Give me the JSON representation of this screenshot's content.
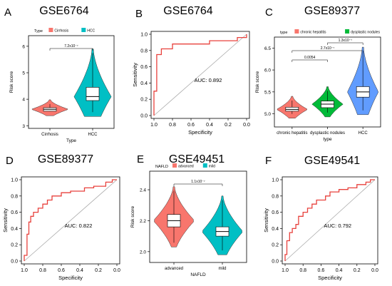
{
  "figure": {
    "panels": [
      {
        "letter": "A",
        "title": "GSE6764"
      },
      {
        "letter": "B",
        "title": "GSE6764"
      },
      {
        "letter": "C",
        "title": "GSE89377"
      },
      {
        "letter": "D",
        "title": "GSE89377"
      },
      {
        "letter": "E",
        "title": "GSE49451"
      },
      {
        "letter": "F",
        "title": "GSE49541"
      }
    ]
  },
  "chart_data": [
    {
      "panel": "A",
      "type": "violin",
      "title": "GSE6764",
      "legend_title": "Type",
      "legend_position": "top",
      "categories": [
        "Cirrhosis",
        "HCC"
      ],
      "colors": [
        "#F8766D",
        "#00BFC4"
      ],
      "xlabel": "Type",
      "ylabel": "Risk score",
      "yticks": [
        3,
        4,
        5,
        6
      ],
      "ylim": [
        2.9,
        6.4
      ],
      "groups": [
        {
          "name": "Cirrhosis",
          "min": 3.38,
          "max": 3.98,
          "q1": 3.55,
          "median": 3.62,
          "q3": 3.68
        },
        {
          "name": "HCC",
          "min": 3.35,
          "max": 5.9,
          "q1": 3.95,
          "median": 4.1,
          "q3": 4.45
        }
      ],
      "annotations": [
        {
          "text": "7.2x10⁻⁷",
          "between": [
            "Cirrhosis",
            "HCC"
          ]
        }
      ]
    },
    {
      "panel": "B",
      "type": "line",
      "title": "GSE6764",
      "xlabel": "Specificity",
      "ylabel": "Sensitivity",
      "xticks": [
        "1.0",
        "0.8",
        "0.6",
        "0.4",
        "0.2",
        "0.0"
      ],
      "yticks": [
        "0.0",
        "0.2",
        "0.4",
        "0.6",
        "0.8",
        "1.0"
      ],
      "xlim": [
        1.0,
        0.0
      ],
      "ylim": [
        0,
        1
      ],
      "auc_label": "AUC: 0.892",
      "roc": [
        [
          1.0,
          0.0
        ],
        [
          1.0,
          0.3
        ],
        [
          0.97,
          0.3
        ],
        [
          0.97,
          0.75
        ],
        [
          0.92,
          0.75
        ],
        [
          0.92,
          0.82
        ],
        [
          0.8,
          0.82
        ],
        [
          0.8,
          0.88
        ],
        [
          0.4,
          0.88
        ],
        [
          0.4,
          0.92
        ],
        [
          0.1,
          0.92
        ],
        [
          0.1,
          0.96
        ],
        [
          0.0,
          0.96
        ],
        [
          0.0,
          1.0
        ]
      ]
    },
    {
      "panel": "C",
      "type": "violin",
      "title": "GSE89377",
      "legend_title": "type",
      "legend_position": "top",
      "categories": [
        "chronic hepatitis",
        "dysplastic nodules",
        "HCC"
      ],
      "colors": [
        "#F8766D",
        "#00BA38",
        "#619CFF"
      ],
      "xlabel": "type",
      "ylabel": "Risk score",
      "yticks": [
        5.0,
        5.5,
        6.0,
        6.5
      ],
      "ylim": [
        4.7,
        6.75
      ],
      "groups": [
        {
          "name": "chronic hepatitis",
          "min": 4.9,
          "max": 5.4,
          "q1": 5.06,
          "median": 5.1,
          "q3": 5.15
        },
        {
          "name": "dysplastic nodules",
          "min": 4.93,
          "max": 5.62,
          "q1": 5.14,
          "median": 5.22,
          "q3": 5.29
        },
        {
          "name": "HCC",
          "min": 4.98,
          "max": 6.52,
          "q1": 5.38,
          "median": 5.5,
          "q3": 5.62
        }
      ],
      "annotations": [
        {
          "text": "0.0054",
          "between": [
            "chronic hepatitis",
            "dysplastic nodules"
          ]
        },
        {
          "text": "2.7x10⁻⁷",
          "between": [
            "chronic hepatitis",
            "HCC"
          ]
        },
        {
          "text": "1.3x10⁻⁷",
          "between": [
            "dysplastic nodules",
            "HCC"
          ]
        }
      ]
    },
    {
      "panel": "D",
      "type": "line",
      "title": "GSE89377",
      "xlabel": "Specificity",
      "ylabel": "Sensitivity",
      "xticks": [
        "1.0",
        "0.8",
        "0.6",
        "0.4",
        "0.2",
        "0.0"
      ],
      "yticks": [
        "0.0",
        "0.2",
        "0.4",
        "0.6",
        "0.8",
        "1.0"
      ],
      "xlim": [
        1.0,
        0.0
      ],
      "ylim": [
        0,
        1
      ],
      "auc_label": "AUC: 0.822",
      "roc": [
        [
          1.0,
          0.0
        ],
        [
          1.0,
          0.07
        ],
        [
          0.97,
          0.07
        ],
        [
          0.97,
          0.33
        ],
        [
          0.95,
          0.33
        ],
        [
          0.95,
          0.48
        ],
        [
          0.93,
          0.48
        ],
        [
          0.93,
          0.55
        ],
        [
          0.9,
          0.55
        ],
        [
          0.9,
          0.6
        ],
        [
          0.85,
          0.6
        ],
        [
          0.85,
          0.65
        ],
        [
          0.8,
          0.65
        ],
        [
          0.8,
          0.7
        ],
        [
          0.75,
          0.7
        ],
        [
          0.75,
          0.75
        ],
        [
          0.7,
          0.75
        ],
        [
          0.7,
          0.8
        ],
        [
          0.6,
          0.8
        ],
        [
          0.6,
          0.84
        ],
        [
          0.5,
          0.84
        ],
        [
          0.5,
          0.86
        ],
        [
          0.35,
          0.86
        ],
        [
          0.35,
          0.9
        ],
        [
          0.25,
          0.9
        ],
        [
          0.25,
          0.92
        ],
        [
          0.12,
          0.92
        ],
        [
          0.12,
          0.97
        ],
        [
          0.05,
          0.97
        ],
        [
          0.05,
          1.0
        ],
        [
          0.0,
          1.0
        ]
      ]
    },
    {
      "panel": "E",
      "type": "violin",
      "title": "GSE49451",
      "legend_title": "NAFLD",
      "legend_position": "top",
      "categories": [
        "advanced",
        "mild"
      ],
      "colors": [
        "#F8766D",
        "#00BFC4"
      ],
      "xlabel": "NAFLD",
      "ylabel": "Risk score",
      "yticks": [
        2.0,
        2.2,
        2.4
      ],
      "ylim": [
        1.93,
        2.52
      ],
      "groups": [
        {
          "name": "advanced",
          "min": 2.03,
          "max": 2.42,
          "q1": 2.16,
          "median": 2.2,
          "q3": 2.24
        },
        {
          "name": "mild",
          "min": 1.98,
          "max": 2.36,
          "q1": 2.1,
          "median": 2.13,
          "q3": 2.16
        }
      ],
      "annotations": [
        {
          "text": "1.1x10⁻⁷",
          "between": [
            "advanced",
            "mild"
          ]
        }
      ]
    },
    {
      "panel": "F",
      "type": "line",
      "title": "GSE49541",
      "xlabel": "Specificity",
      "ylabel": "Sensitivity",
      "xticks": [
        "1.0",
        "0.8",
        "0.6",
        "0.4",
        "0.2",
        "0.0"
      ],
      "yticks": [
        "0.0",
        "0.2",
        "0.4",
        "0.6",
        "0.8",
        "1.0"
      ],
      "xlim": [
        1.0,
        0.0
      ],
      "ylim": [
        0,
        1
      ],
      "auc_label": "AUC: 0.792",
      "roc": [
        [
          1.0,
          0.0
        ],
        [
          1.0,
          0.08
        ],
        [
          0.98,
          0.08
        ],
        [
          0.98,
          0.25
        ],
        [
          0.95,
          0.25
        ],
        [
          0.95,
          0.35
        ],
        [
          0.92,
          0.35
        ],
        [
          0.92,
          0.4
        ],
        [
          0.88,
          0.4
        ],
        [
          0.88,
          0.45
        ],
        [
          0.85,
          0.45
        ],
        [
          0.85,
          0.55
        ],
        [
          0.8,
          0.55
        ],
        [
          0.8,
          0.6
        ],
        [
          0.75,
          0.6
        ],
        [
          0.75,
          0.65
        ],
        [
          0.7,
          0.65
        ],
        [
          0.7,
          0.7
        ],
        [
          0.65,
          0.7
        ],
        [
          0.65,
          0.75
        ],
        [
          0.55,
          0.75
        ],
        [
          0.55,
          0.8
        ],
        [
          0.5,
          0.8
        ],
        [
          0.5,
          0.85
        ],
        [
          0.4,
          0.85
        ],
        [
          0.4,
          0.88
        ],
        [
          0.3,
          0.88
        ],
        [
          0.3,
          0.9
        ],
        [
          0.2,
          0.9
        ],
        [
          0.2,
          0.94
        ],
        [
          0.1,
          0.94
        ],
        [
          0.1,
          0.97
        ],
        [
          0.05,
          0.97
        ],
        [
          0.05,
          1.0
        ],
        [
          0.0,
          1.0
        ]
      ]
    }
  ]
}
